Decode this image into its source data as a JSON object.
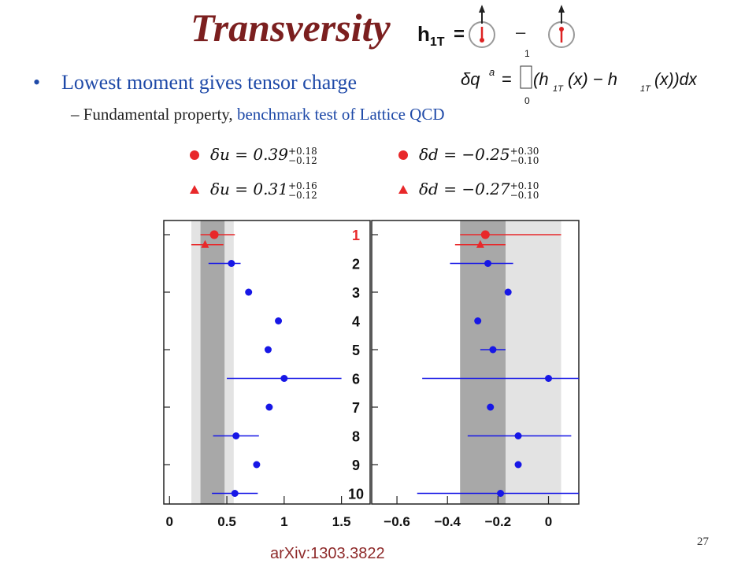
{
  "slide": {
    "title": "Transversity",
    "h1t_label": "h",
    "h1t_sub": "1T",
    "h1t_eq": "=",
    "h1t_minus": "–",
    "bullet": "Lowest moment gives tensor charge",
    "sub_bullet_prefix": "– Fundamental property, ",
    "sub_bullet_highlight": "benchmark test of Lattice QCD",
    "arxiv": "arXiv:1303.3822",
    "page_number": "27",
    "formula": {
      "lhs": "δq",
      "sup": "a",
      "eq": "=",
      "upper": "1",
      "lower": "0",
      "body": "(h",
      "body2": "(x) − h",
      "body3": "(x))dx",
      "sub": "1T"
    }
  },
  "legend": [
    {
      "marker": "circle",
      "label": "δu = 0.39",
      "plus": "+0.18",
      "minus": "−0.12"
    },
    {
      "marker": "circle",
      "label": "δd = −0.25",
      "plus": "+0.30",
      "minus": "−0.10"
    },
    {
      "marker": "triangle",
      "label": "δu = 0.31",
      "plus": "+0.16",
      "minus": "−0.12"
    },
    {
      "marker": "triangle",
      "label": "δd = −0.27",
      "plus": "+0.10",
      "minus": "−0.10"
    }
  ],
  "colors": {
    "red": "#e8282a",
    "blue": "#1717e6",
    "band_dark": "#a8a8a8",
    "band_light": "#e3e3e3"
  },
  "chart_data": {
    "type": "scatter",
    "row_labels": [
      "1",
      "2",
      "3",
      "4",
      "5",
      "6",
      "7",
      "8",
      "9",
      "10"
    ],
    "panels": [
      {
        "name": "δu",
        "xlim": [
          -0.05,
          1.75
        ],
        "ticks": [
          0,
          0.5,
          1,
          1.5
        ],
        "tick_labels": [
          "0",
          "0.5",
          "1",
          "1.5"
        ],
        "band_light": [
          0.19,
          0.56
        ],
        "band_dark": [
          0.27,
          0.48
        ],
        "points": [
          {
            "row": 1,
            "x": 0.39,
            "lo": 0.27,
            "hi": 0.57,
            "color": "red",
            "marker": "circle"
          },
          {
            "row": 1.35,
            "x": 0.31,
            "lo": 0.19,
            "hi": 0.47,
            "color": "red",
            "marker": "triangle"
          },
          {
            "row": 2,
            "x": 0.54,
            "lo": 0.34,
            "hi": 0.62,
            "color": "blue",
            "marker": "circle"
          },
          {
            "row": 3,
            "x": 0.69,
            "color": "blue",
            "marker": "circle"
          },
          {
            "row": 4,
            "x": 0.95,
            "color": "blue",
            "marker": "circle"
          },
          {
            "row": 5,
            "x": 0.86,
            "color": "blue",
            "marker": "circle"
          },
          {
            "row": 6,
            "x": 1.0,
            "lo": 0.5,
            "hi": 1.5,
            "color": "blue",
            "marker": "circle"
          },
          {
            "row": 7,
            "x": 0.87,
            "color": "blue",
            "marker": "circle"
          },
          {
            "row": 8,
            "x": 0.58,
            "lo": 0.38,
            "hi": 0.78,
            "color": "blue",
            "marker": "circle"
          },
          {
            "row": 9,
            "x": 0.76,
            "color": "blue",
            "marker": "circle"
          },
          {
            "row": 10,
            "x": 0.57,
            "lo": 0.37,
            "hi": 0.77,
            "color": "blue",
            "marker": "circle"
          }
        ]
      },
      {
        "name": "δd",
        "xlim": [
          -0.7,
          0.12
        ],
        "ticks": [
          -0.6,
          -0.4,
          -0.2,
          0
        ],
        "tick_labels": [
          "−0.6",
          "−0.4",
          "−0.2",
          "0"
        ],
        "band_light": [
          -0.35,
          0.05
        ],
        "band_dark": [
          -0.35,
          -0.17
        ],
        "points": [
          {
            "row": 1,
            "x": -0.25,
            "lo": -0.35,
            "hi": 0.05,
            "color": "red",
            "marker": "circle"
          },
          {
            "row": 1.35,
            "x": -0.27,
            "lo": -0.37,
            "hi": -0.17,
            "color": "red",
            "marker": "triangle"
          },
          {
            "row": 2,
            "x": -0.24,
            "lo": -0.39,
            "hi": -0.14,
            "color": "blue",
            "marker": "circle"
          },
          {
            "row": 3,
            "x": -0.16,
            "color": "blue",
            "marker": "circle"
          },
          {
            "row": 4,
            "x": -0.28,
            "color": "blue",
            "marker": "circle"
          },
          {
            "row": 5,
            "x": -0.22,
            "lo": -0.27,
            "hi": -0.17,
            "color": "blue",
            "marker": "circle"
          },
          {
            "row": 6,
            "x": 0.0,
            "lo": -0.5,
            "hi": 0.12,
            "color": "blue",
            "marker": "circle"
          },
          {
            "row": 7,
            "x": -0.23,
            "color": "blue",
            "marker": "circle"
          },
          {
            "row": 8,
            "x": -0.12,
            "lo": -0.32,
            "hi": 0.09,
            "color": "blue",
            "marker": "circle"
          },
          {
            "row": 9,
            "x": -0.12,
            "color": "blue",
            "marker": "circle"
          },
          {
            "row": 10,
            "x": -0.19,
            "lo": -0.52,
            "hi": 0.12,
            "color": "blue",
            "marker": "circle"
          }
        ]
      }
    ]
  }
}
